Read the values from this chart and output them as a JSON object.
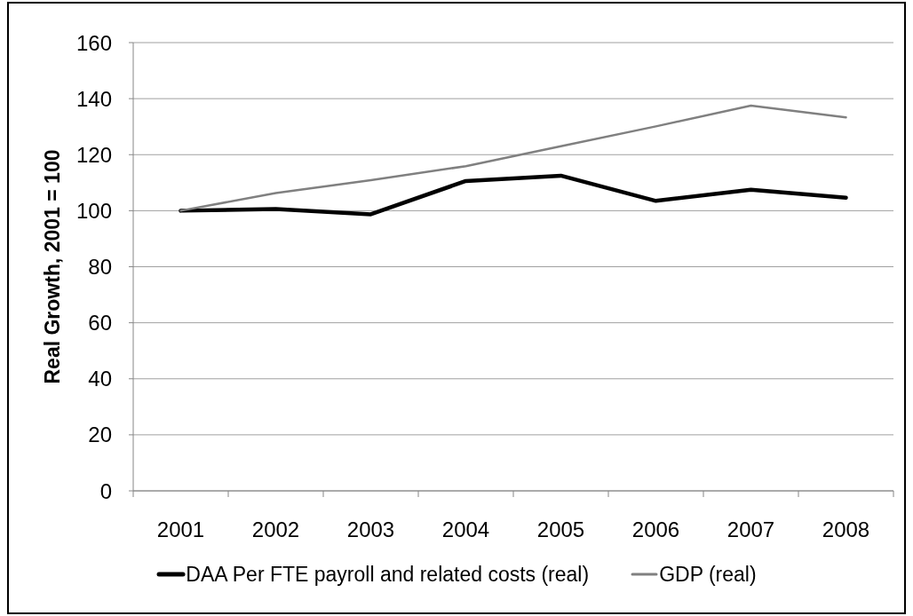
{
  "chart_data": {
    "type": "line",
    "ylabel": "Real Growth, 2001 = 100",
    "categories": [
      "2001",
      "2002",
      "2003",
      "2004",
      "2005",
      "2006",
      "2007",
      "2008"
    ],
    "series": [
      {
        "name": "DAA Per FTE payroll and related costs (real)",
        "color": "#000000",
        "values": [
          100,
          100.6,
          98.7,
          110.6,
          112.5,
          103.5,
          107.5,
          104.6
        ]
      },
      {
        "name": "GDP (real)",
        "color": "#808080",
        "values": [
          100,
          106.3,
          110.9,
          115.9,
          123.0,
          130.1,
          137.5,
          133.3
        ]
      }
    ],
    "ylim": [
      0,
      160
    ],
    "yticks": [
      0,
      20,
      40,
      60,
      80,
      100,
      120,
      140,
      160
    ],
    "grid": "y",
    "legend": "bottom",
    "marker": "none",
    "line_style": "solid"
  }
}
